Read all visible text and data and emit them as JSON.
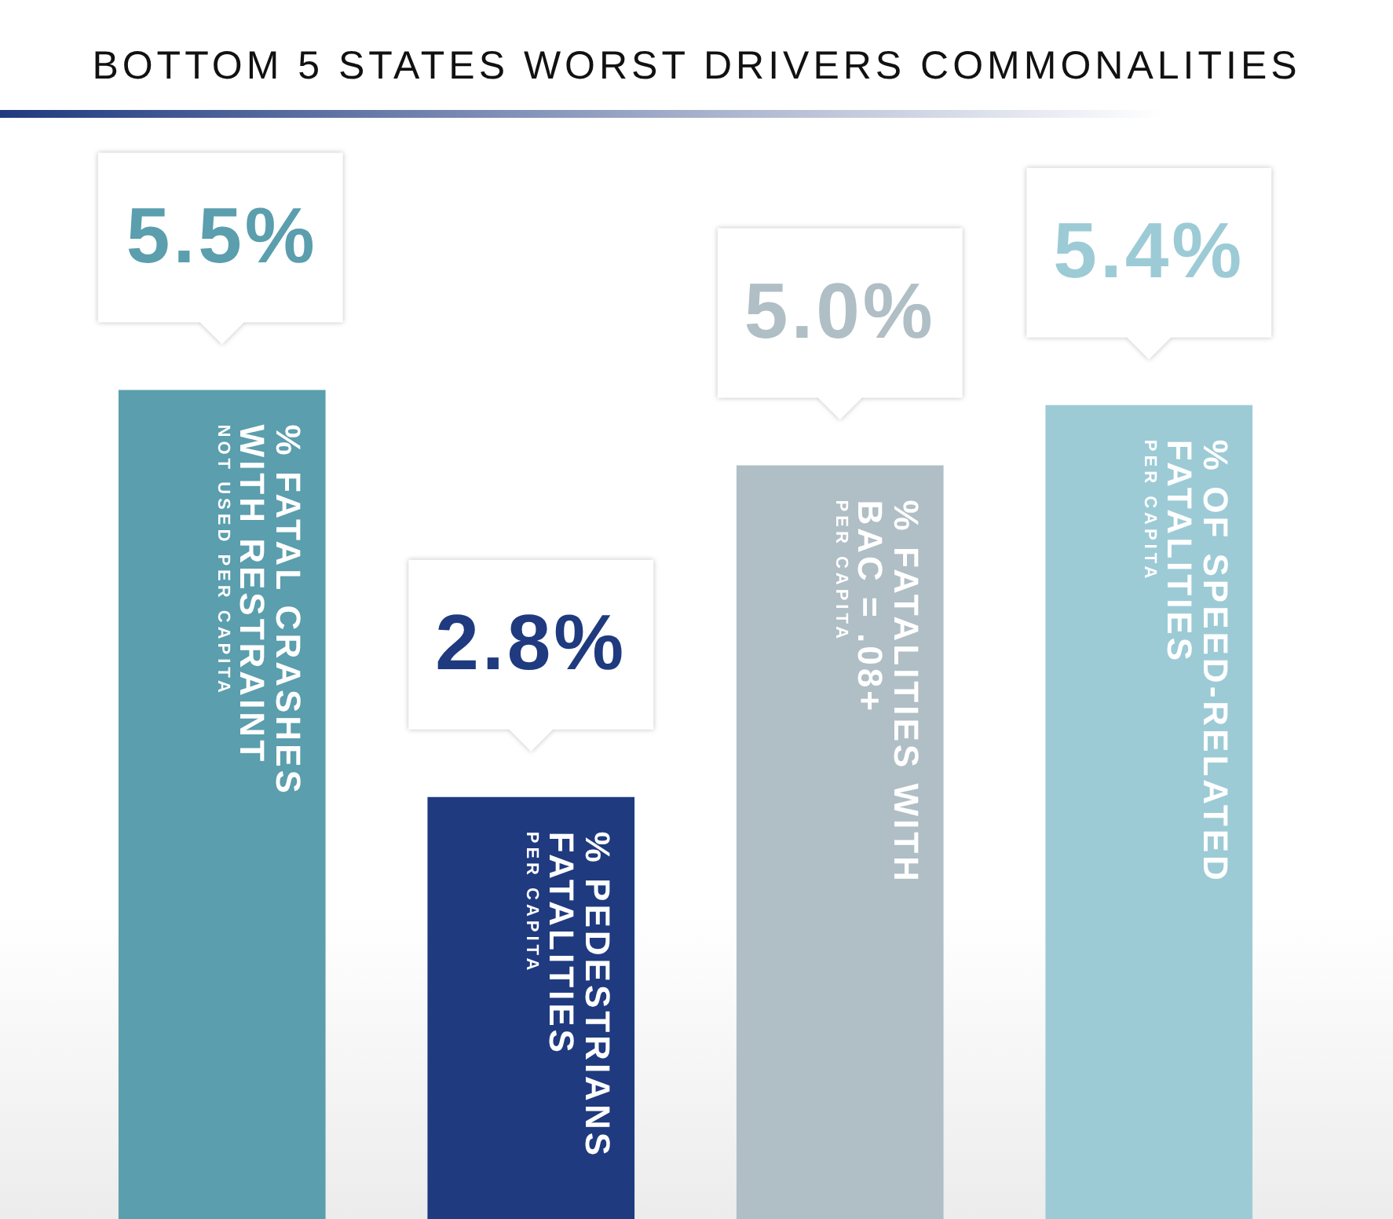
{
  "chart_data": {
    "type": "bar",
    "title": "BOTTOM 5 STATES WORST DRIVERS COMMONALITIES",
    "categories": [
      "% FATAL CRASHES\nWITH RESTRAINT\nNOT USED PER CAPITA",
      "% PEDESTRIANS\nFATALITIES\nPER CAPITA",
      "% FATALITIES WITH\nBAC = .08+\nPER CAPITA",
      "% OF SPEED-RELATED\nFATALITIES\nPER CAPITA"
    ],
    "values": [
      5.5,
      2.8,
      5.0,
      5.4
    ],
    "colors": [
      "#5b9ead",
      "#1f3a7f",
      "#b0bec5",
      "#9ccbd6"
    ],
    "value_labels": [
      "5.5%",
      "2.8%",
      "5.0%",
      "5.4%"
    ]
  }
}
